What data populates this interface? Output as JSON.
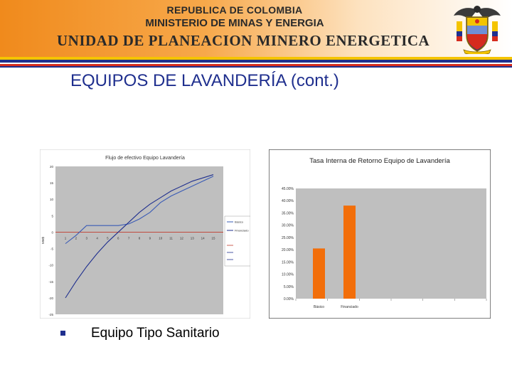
{
  "header": {
    "line1": "REPUBLICA DE COLOMBIA",
    "line2": "MINISTERIO DE MINAS Y ENERGIA",
    "line3": "UNIDAD DE PLANEACION MINERO ENERGETICA"
  },
  "colors": {
    "header_orange": "#f08a1c",
    "stripe_yellow": "#f4c400",
    "stripe_blue": "#1f2f8e",
    "stripe_red": "#d52b1e",
    "title_blue": "#1f2f8e",
    "bar_orange": "#f26e0a",
    "plot_gray": "#bfbfbf"
  },
  "crest_icon": "coat-of-arms-icon",
  "slide": {
    "title": "EQUIPOS DE LAVANDERÍA (cont.)",
    "bullet_icon": "square-bullet-icon",
    "bullet": "Equipo Tipo Sanitario"
  },
  "chart_data": [
    {
      "type": "line",
      "title": "Flujo de efectivo Equipo Lavandería",
      "ylabel": "MM$",
      "x": [
        1,
        2,
        3,
        4,
        5,
        6,
        7,
        8,
        9,
        10,
        11,
        12,
        13,
        14,
        15
      ],
      "y_ticks": [
        -25,
        -20,
        -15,
        -10,
        -5,
        0,
        5,
        10,
        15,
        20
      ],
      "ylim": [
        -25,
        20
      ],
      "grid": false,
      "legend_position": "right",
      "series": [
        {
          "name": "Básico",
          "color": "#3a5bb5",
          "values": [
            -3.5,
            -1,
            2,
            2,
            2,
            2,
            2.5,
            4,
            6,
            9,
            11,
            12.5,
            14,
            15.5,
            17
          ]
        },
        {
          "name": "Financiado",
          "color": "#1f2f8e",
          "values": [
            -20,
            -15,
            -10.5,
            -6.5,
            -3,
            0,
            3,
            6,
            8.5,
            10.5,
            12.5,
            14,
            15.5,
            16.5,
            17.5
          ]
        }
      ],
      "zero_line_color": "#c0392b"
    },
    {
      "type": "bar",
      "title": "Tasa Interna de Retorno Equipo de Lavandería",
      "categories": [
        "Básico",
        "Financiado"
      ],
      "values": [
        20.5,
        38
      ],
      "y_ticks": [
        "0.00%",
        "5.00%",
        "10.00%",
        "15.00%",
        "20.00%",
        "25.00%",
        "30.00%",
        "35.00%",
        "40.00%",
        "45.00%"
      ],
      "ylim": [
        0,
        45
      ],
      "grid": false
    }
  ]
}
